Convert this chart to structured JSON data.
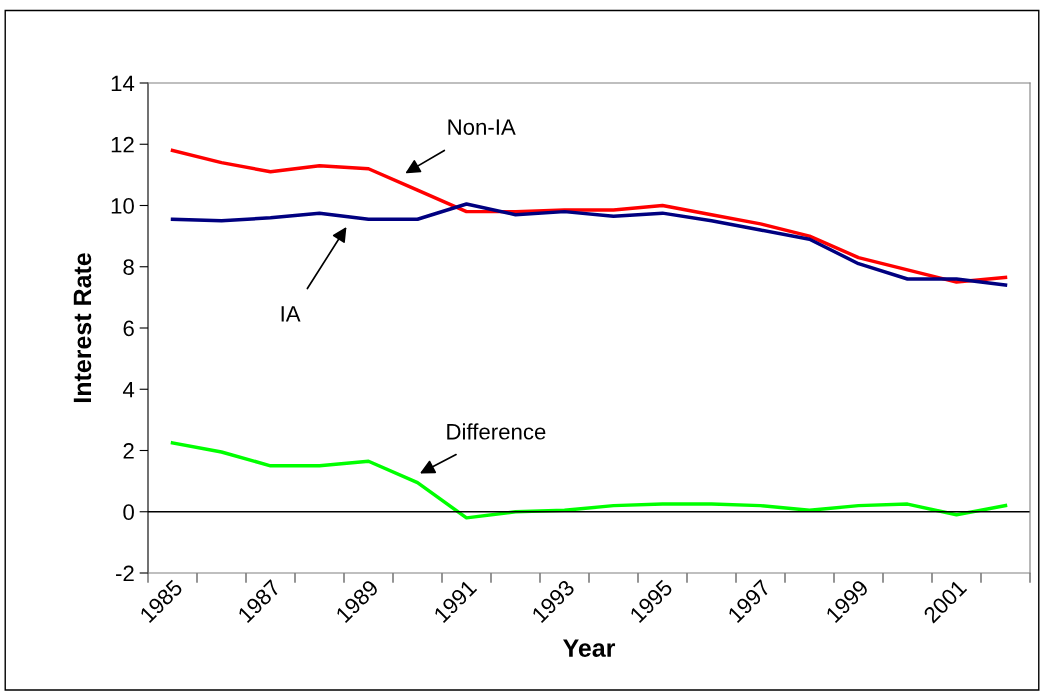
{
  "chart_data": {
    "type": "line",
    "xlabel": "Year",
    "ylabel": "Interest Rate",
    "categories": [
      "1985",
      null,
      "1987",
      null,
      "1989",
      null,
      "1991",
      null,
      "1993",
      null,
      "1995",
      null,
      "1997",
      null,
      "1999",
      null,
      "2001",
      null
    ],
    "series": [
      {
        "name": "Non-IA",
        "color": "#ff0000",
        "values": [
          11.8,
          11.4,
          11.1,
          11.3,
          11.2,
          10.5,
          9.8,
          9.8,
          9.85,
          9.85,
          10.0,
          9.7,
          9.4,
          9.0,
          8.3,
          7.9,
          7.5,
          7.65
        ]
      },
      {
        "name": "IA",
        "color": "#000080",
        "values": [
          9.55,
          9.5,
          9.6,
          9.75,
          9.55,
          9.55,
          10.05,
          9.7,
          9.8,
          9.65,
          9.75,
          9.5,
          9.2,
          8.9,
          8.1,
          7.6,
          7.6,
          7.4
        ]
      },
      {
        "name": "Difference",
        "color": "#00ff00",
        "values": [
          2.25,
          1.95,
          1.5,
          1.5,
          1.65,
          0.95,
          -0.2,
          0.0,
          0.05,
          0.2,
          0.25,
          0.25,
          0.2,
          0.05,
          0.2,
          0.25,
          -0.1,
          0.2
        ]
      }
    ],
    "ylim": [
      -2,
      14
    ],
    "yticks": [
      -2,
      0,
      2,
      4,
      6,
      8,
      10,
      12,
      14
    ],
    "ref_lines": [
      {
        "axis": "y",
        "value": 0,
        "color": "#000000"
      }
    ],
    "grid": false,
    "legend": false,
    "marker": "none",
    "line_style": "solid"
  }
}
